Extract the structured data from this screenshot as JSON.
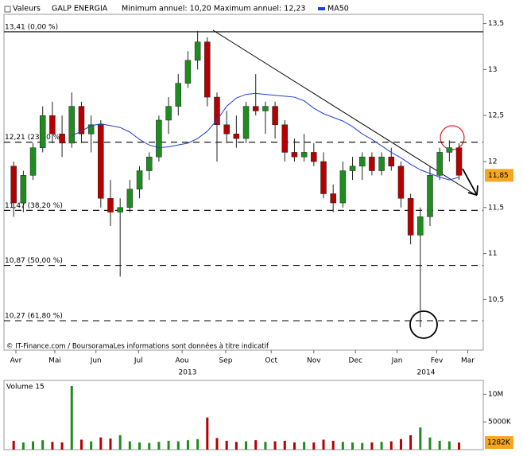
{
  "chart_data": [
    {
      "type": "candlestick",
      "header_label": "Valeurs",
      "title": "GALP ENERGIA",
      "subtitle": "Minimum annuel: 10,20 Maximum annuel: 12,23",
      "footer": "© IT-Finance.com / BoursoramaLes informations sont données à titre indicatif",
      "years": [
        "2013",
        "2014"
      ],
      "x": [
        0,
        1,
        2,
        3,
        4,
        5,
        6,
        7,
        8,
        9,
        10,
        11,
        12,
        13,
        14,
        15,
        16,
        17,
        18,
        19,
        20,
        21,
        22,
        23,
        24,
        25,
        26,
        27,
        28,
        29,
        30,
        31,
        32,
        33,
        34,
        35,
        36,
        37,
        38,
        39,
        40,
        41,
        42,
        43,
        44,
        45,
        46
      ],
      "xlim": [
        -1,
        48.5
      ],
      "xticks": [
        {
          "value": 0.23,
          "label": "Avr"
        },
        {
          "value": 4.25,
          "label": "Mai"
        },
        {
          "value": 8.5,
          "label": "Jun"
        },
        {
          "value": 12.9,
          "label": "Jul"
        },
        {
          "value": 17.4,
          "label": "Aou"
        },
        {
          "value": 21.9,
          "label": "Sep"
        },
        {
          "value": 26.6,
          "label": "Oct"
        },
        {
          "value": 31.0,
          "label": "Nov"
        },
        {
          "value": 35.3,
          "label": "Dec"
        },
        {
          "value": 39.6,
          "label": "Jan"
        },
        {
          "value": 43.7,
          "label": "Fev"
        },
        {
          "value": 46.9,
          "label": "Mar"
        }
      ],
      "open": [
        11.95,
        11.55,
        11.85,
        12.15,
        12.5,
        12.3,
        12.2,
        12.6,
        12.3,
        12.4,
        11.6,
        11.45,
        11.5,
        11.7,
        11.9,
        12.05,
        12.45,
        12.6,
        12.85,
        13.1,
        13.3,
        12.7,
        12.4,
        12.3,
        12.25,
        12.6,
        12.55,
        12.6,
        12.4,
        12.1,
        12.05,
        12.1,
        12.0,
        11.65,
        11.55,
        11.9,
        11.95,
        12.05,
        11.9,
        12.05,
        11.95,
        11.6,
        11.2,
        11.4,
        11.85,
        12.1,
        12.15
      ],
      "high": [
        12.0,
        11.9,
        12.2,
        12.6,
        12.65,
        12.5,
        12.75,
        12.65,
        12.5,
        12.45,
        11.8,
        11.6,
        11.8,
        11.95,
        12.1,
        12.5,
        12.7,
        12.95,
        13.2,
        13.42,
        13.35,
        12.75,
        12.55,
        12.5,
        12.65,
        12.95,
        12.65,
        12.65,
        12.45,
        12.25,
        12.3,
        12.2,
        12.1,
        11.75,
        12.0,
        12.05,
        12.1,
        12.1,
        12.1,
        12.15,
        12.0,
        11.65,
        11.5,
        11.95,
        12.15,
        12.23,
        12.2
      ],
      "low": [
        11.4,
        11.45,
        11.8,
        12.1,
        12.2,
        12.05,
        12.15,
        12.2,
        12.1,
        11.5,
        11.3,
        10.75,
        11.45,
        11.6,
        11.8,
        12.0,
        12.3,
        12.5,
        12.8,
        13.0,
        12.6,
        12.0,
        12.2,
        12.15,
        12.2,
        12.5,
        12.3,
        12.25,
        12.0,
        12.0,
        12.0,
        11.95,
        11.6,
        11.45,
        11.5,
        11.8,
        11.8,
        11.85,
        11.85,
        11.9,
        11.5,
        11.1,
        10.2,
        11.3,
        11.8,
        12.0,
        11.8
      ],
      "close": [
        11.55,
        11.85,
        12.15,
        12.5,
        12.3,
        12.2,
        12.6,
        12.3,
        12.4,
        11.6,
        11.45,
        11.5,
        11.7,
        11.9,
        12.05,
        12.45,
        12.6,
        12.85,
        13.1,
        13.3,
        12.7,
        12.4,
        12.3,
        12.25,
        12.6,
        12.55,
        12.6,
        12.4,
        12.1,
        12.05,
        12.1,
        12.0,
        11.65,
        11.55,
        11.9,
        11.95,
        12.05,
        11.9,
        12.05,
        11.95,
        11.6,
        11.2,
        11.4,
        11.85,
        12.1,
        12.15,
        11.85
      ],
      "up_color": "#1e8c1e",
      "down_color": "#b40000",
      "series": [
        {
          "name": "MA50",
          "color": "#1f3fcf",
          "values": [
            null,
            null,
            null,
            null,
            null,
            null,
            12.28,
            12.33,
            12.39,
            12.41,
            12.39,
            12.37,
            12.32,
            12.24,
            12.18,
            12.15,
            12.16,
            12.18,
            12.2,
            12.25,
            12.33,
            12.45,
            12.6,
            12.69,
            12.73,
            12.74,
            12.73,
            12.72,
            12.71,
            12.7,
            12.66,
            12.58,
            12.52,
            12.48,
            12.44,
            12.38,
            12.3,
            12.24,
            12.17,
            12.1,
            12.04,
            11.97,
            11.91,
            11.87,
            11.83,
            11.8,
            11.83
          ]
        }
      ],
      "ylim": [
        9.95,
        13.6
      ],
      "yticks": [
        {
          "value": 10.5,
          "label": "10,5"
        },
        11,
        {
          "value": 11.5,
          "label": "11,5"
        },
        12,
        {
          "value": 12.5,
          "label": "12,5"
        },
        13,
        {
          "value": 13.5,
          "label": "13,5"
        }
      ],
      "levels": [
        {
          "value": 13.41,
          "label": "13,41 (0,00 %)"
        },
        {
          "value": 12.21,
          "label": "12,21 (23,60 %)"
        },
        {
          "value": 11.47,
          "label": "11,47 (38,20 %)"
        },
        {
          "value": 10.87,
          "label": "10,87 (50,00 %)"
        },
        {
          "value": 10.27,
          "label": "10,27 (61,80 %)"
        }
      ],
      "last_price": {
        "value": 11.85,
        "label": "11,85"
      }
    },
    {
      "type": "bar",
      "title": "Volume 15",
      "x": [
        0,
        1,
        2,
        3,
        4,
        5,
        6,
        7,
        8,
        9,
        10,
        11,
        12,
        13,
        14,
        15,
        16,
        17,
        18,
        19,
        20,
        21,
        22,
        23,
        24,
        25,
        26,
        27,
        28,
        29,
        30,
        31,
        32,
        33,
        34,
        35,
        36,
        37,
        38,
        39,
        40,
        41,
        42,
        43,
        44,
        45,
        46
      ],
      "values": [
        1600000,
        1300000,
        1500000,
        1700000,
        1400000,
        1300000,
        11500000,
        1800000,
        1500000,
        2200000,
        2000000,
        2600000,
        1500000,
        1300000,
        1200000,
        1400000,
        1600000,
        1500000,
        1700000,
        1900000,
        5800000,
        2100000,
        1600000,
        1400000,
        1500000,
        1700000,
        1400000,
        1500000,
        1600000,
        1300000,
        1400000,
        1300000,
        1800000,
        1600000,
        1400000,
        1300000,
        1200000,
        1300000,
        1400000,
        1500000,
        1900000,
        2600000,
        4000000,
        2200000,
        1600000,
        1500000,
        1282000
      ],
      "ylim": [
        0,
        12500000
      ],
      "yticks": [
        {
          "value": 5000000,
          "label": "5000K"
        },
        {
          "value": 10000000,
          "label": "10M"
        }
      ],
      "last_volume": {
        "value": 1282000,
        "label": "1282K"
      }
    }
  ]
}
